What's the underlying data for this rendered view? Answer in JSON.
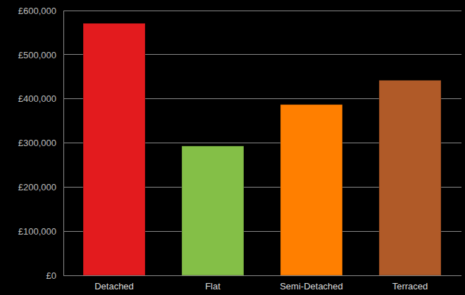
{
  "chart_data": {
    "type": "bar",
    "categories": [
      "Detached",
      "Flat",
      "Semi-Detached",
      "Terraced"
    ],
    "values": [
      571000,
      293000,
      387000,
      442000
    ],
    "colors": [
      "#e31b1e",
      "#84bf47",
      "#ff7f00",
      "#b05a28"
    ],
    "ylim": [
      0,
      600000
    ],
    "yticks": [
      {
        "value": 0,
        "label": "£0"
      },
      {
        "value": 100000,
        "label": "£100,000"
      },
      {
        "value": 200000,
        "label": "£200,000"
      },
      {
        "value": 300000,
        "label": "£300,000"
      },
      {
        "value": 400000,
        "label": "£400,000"
      },
      {
        "value": 500000,
        "label": "£500,000"
      },
      {
        "value": 600000,
        "label": "£600,000"
      }
    ],
    "grid": true
  }
}
